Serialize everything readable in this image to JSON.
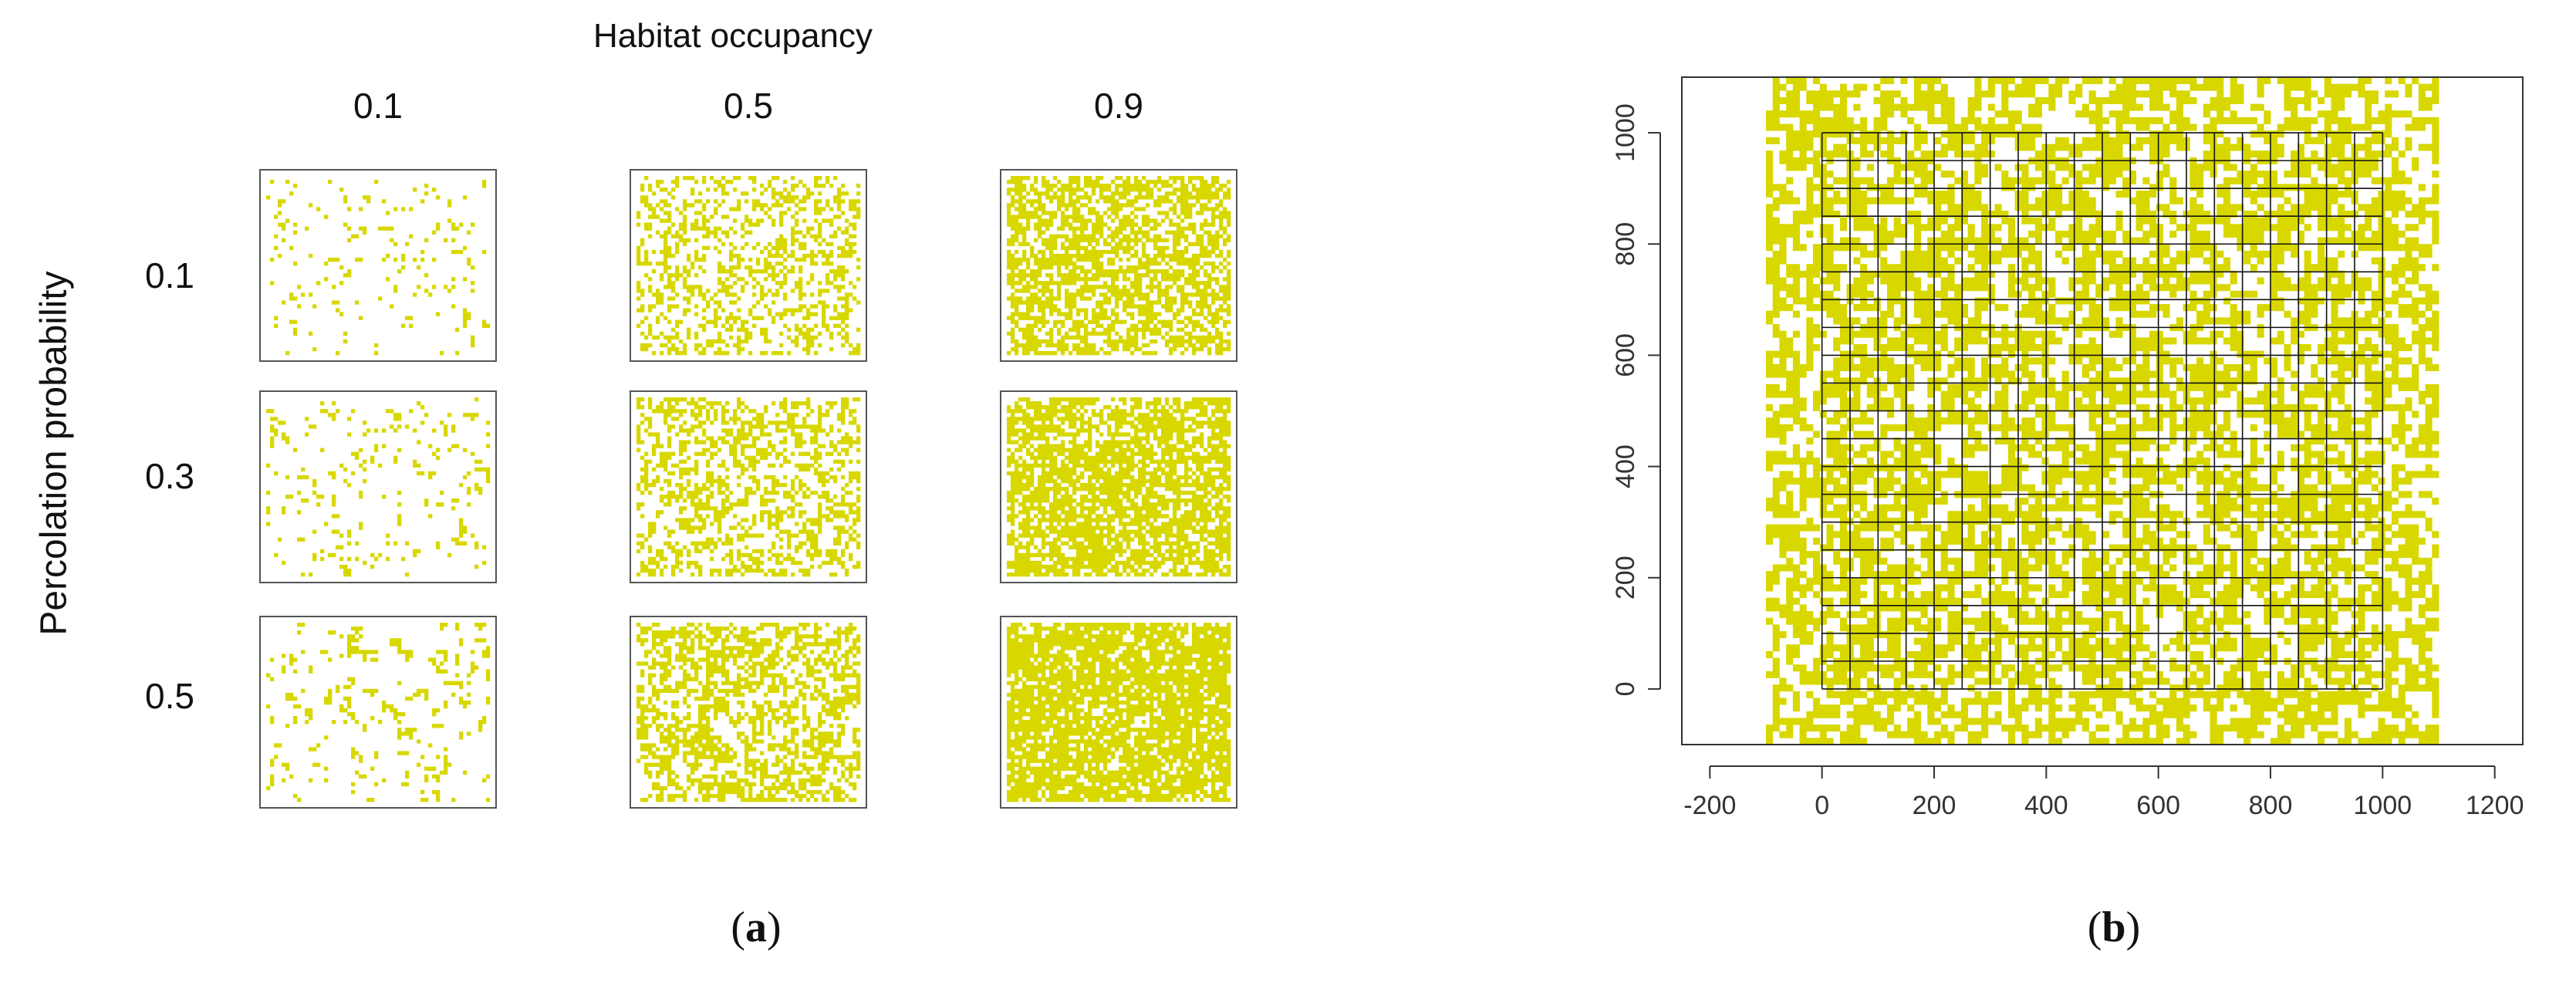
{
  "panel_a": {
    "title": "Habitat occupancy",
    "ylabel": "Percolation probability",
    "columns": [
      "0.1",
      "0.5",
      "0.9"
    ],
    "rows": [
      "0.1",
      "0.3",
      "0.5"
    ],
    "tag": "a"
  },
  "panel_b": {
    "tag": "b",
    "x_ticks": [
      "-200",
      "0",
      "200",
      "400",
      "600",
      "800",
      "1000",
      "1200"
    ],
    "y_ticks": [
      "0",
      "200",
      "400",
      "600",
      "800",
      "1000"
    ]
  },
  "colors": {
    "habitat": "#d8d800",
    "grid": "#111111",
    "frame": "#555555"
  }
}
